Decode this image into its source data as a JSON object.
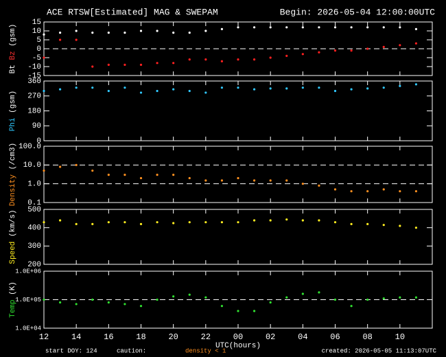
{
  "header": {
    "title": "ACE RTSW[Estimated] MAG & SWEPAM",
    "begin": "Begin: 2026-05-04 12:00:00UTC"
  },
  "footer": {
    "start": "start DOY: 124",
    "caution": "caution:",
    "density": "density < 1",
    "created": "created: 2026-05-05 11:13:07UTC"
  },
  "chart_data": [
    {
      "type": "scatter",
      "ylabel": [
        {
          "text": "Bt",
          "color": "#ffffff"
        },
        {
          "text": "Bz",
          "color": "#ff3030"
        },
        {
          "text": "(gsm)",
          "color": "#ffffff"
        }
      ],
      "x": [
        12,
        13,
        14,
        15,
        16,
        17,
        18,
        19,
        20,
        21,
        22,
        23,
        24,
        25,
        26,
        27,
        28,
        29,
        30,
        31,
        32,
        33,
        34,
        35
      ],
      "xlim": [
        12,
        36
      ],
      "xticks": [
        12,
        14,
        16,
        18,
        20,
        22,
        24,
        26,
        28,
        30,
        32,
        34
      ],
      "ylim": [
        -15,
        15
      ],
      "yticks": [
        -15,
        -10,
        -5,
        0,
        5,
        10,
        15
      ],
      "hlines": [
        0
      ],
      "series": [
        {
          "name": "Bt",
          "color": "#ffffff",
          "values": [
            8,
            9,
            10,
            9,
            9,
            9,
            10,
            10,
            9,
            9,
            10,
            11,
            12,
            12,
            12,
            12,
            12,
            12,
            12,
            12,
            12,
            12,
            12,
            11
          ]
        },
        {
          "name": "Bz",
          "color": "#ff2020",
          "values": [
            -5,
            5,
            5,
            -10,
            -9,
            -9,
            -9,
            -8,
            -8,
            -6,
            -6,
            -7,
            -6,
            -6,
            -5,
            -4,
            -3,
            -2,
            -1,
            -1,
            0,
            1,
            2,
            3
          ]
        }
      ]
    },
    {
      "type": "scatter",
      "ylabel": [
        {
          "text": "Phi",
          "color": "#30c8ff"
        },
        {
          "text": "(gsm)",
          "color": "#ffffff"
        }
      ],
      "x": [
        12,
        13,
        14,
        15,
        16,
        17,
        18,
        19,
        20,
        21,
        22,
        23,
        24,
        25,
        26,
        27,
        28,
        29,
        30,
        31,
        32,
        33,
        34,
        35
      ],
      "xlim": [
        12,
        36
      ],
      "xticks": [
        12,
        14,
        16,
        18,
        20,
        22,
        24,
        26,
        28,
        30,
        32,
        34
      ],
      "ylim": [
        0,
        360
      ],
      "yticks": [
        0,
        90,
        180,
        270,
        360
      ],
      "hlines": [],
      "series": [
        {
          "name": "Phi",
          "color": "#30c8ff",
          "values": [
            300,
            310,
            320,
            320,
            300,
            320,
            290,
            300,
            310,
            300,
            290,
            320,
            320,
            310,
            315,
            315,
            320,
            320,
            300,
            310,
            315,
            320,
            330,
            340
          ]
        }
      ]
    },
    {
      "type": "scatter",
      "log": true,
      "ylabel": [
        {
          "text": "Density",
          "color": "#ff9020"
        },
        {
          "text": "(/cm3)",
          "color": "#ffffff"
        }
      ],
      "x": [
        12,
        13,
        14,
        15,
        16,
        17,
        18,
        19,
        20,
        21,
        22,
        23,
        24,
        25,
        26,
        27,
        28,
        29,
        30,
        31,
        32,
        33,
        34,
        35
      ],
      "xlim": [
        12,
        36
      ],
      "xticks": [
        12,
        14,
        16,
        18,
        20,
        22,
        24,
        26,
        28,
        30,
        32,
        34
      ],
      "ylim": [
        0.1,
        100
      ],
      "yticks": [
        0.1,
        {
          "value": 1,
          "label": "1.0"
        },
        {
          "value": 10,
          "label": "10.0"
        },
        {
          "value": 100,
          "label": "100.0"
        }
      ],
      "hlines": [
        1,
        10
      ],
      "series": [
        {
          "name": "Density",
          "color": "#ff9020",
          "values": [
            5,
            8,
            10,
            5,
            3,
            3,
            2,
            3,
            3,
            2,
            1.5,
            1.5,
            2,
            1.5,
            1.5,
            1.5,
            1,
            0.8,
            0.5,
            0.4,
            0.4,
            0.5,
            0.4,
            0.4
          ]
        }
      ]
    },
    {
      "type": "scatter",
      "ylabel": [
        {
          "text": "Speed",
          "color": "#ffee20"
        },
        {
          "text": "(km/s)",
          "color": "#ffffff"
        }
      ],
      "x": [
        12,
        13,
        14,
        15,
        16,
        17,
        18,
        19,
        20,
        21,
        22,
        23,
        24,
        25,
        26,
        27,
        28,
        29,
        30,
        31,
        32,
        33,
        34,
        35
      ],
      "xlim": [
        12,
        36
      ],
      "xticks": [
        12,
        14,
        16,
        18,
        20,
        22,
        24,
        26,
        28,
        30,
        32,
        34
      ],
      "ylim": [
        200,
        500
      ],
      "yticks": [
        200,
        300,
        400,
        500
      ],
      "hlines": [],
      "series": [
        {
          "name": "Speed",
          "color": "#ffee20",
          "values": [
            430,
            440,
            420,
            420,
            430,
            430,
            420,
            430,
            425,
            430,
            430,
            430,
            430,
            440,
            440,
            445,
            440,
            440,
            430,
            420,
            420,
            415,
            410,
            400
          ]
        }
      ]
    },
    {
      "type": "scatter",
      "log": true,
      "ylabel": [
        {
          "text": "Temp",
          "color": "#30e030"
        },
        {
          "text": "(K)",
          "color": "#ffffff"
        }
      ],
      "x": [
        12,
        13,
        14,
        15,
        16,
        17,
        18,
        19,
        20,
        21,
        22,
        23,
        24,
        25,
        26,
        27,
        28,
        29,
        30,
        31,
        32,
        33,
        34,
        35
      ],
      "xlim": [
        12,
        36
      ],
      "xticks": [
        12,
        14,
        16,
        18,
        20,
        22,
        {
          "value": 24,
          "label": "00"
        },
        {
          "value": 26,
          "label": "02"
        },
        {
          "value": 28,
          "label": "04"
        },
        {
          "value": 30,
          "label": "06"
        },
        {
          "value": 32,
          "label": "08"
        },
        {
          "value": 34,
          "label": "10"
        }
      ],
      "xlabel": "UTC(hours)",
      "ylim": [
        10000,
        1000000
      ],
      "yticks": [
        {
          "value": 10000,
          "label": "1.0E+04"
        },
        {
          "value": 100000,
          "label": "1.0E+05"
        },
        {
          "value": 1000000,
          "label": "1.0E+06"
        }
      ],
      "hlines": [
        100000
      ],
      "series": [
        {
          "name": "Temp",
          "color": "#30e030",
          "values": [
            100000,
            80000,
            70000,
            100000,
            80000,
            70000,
            60000,
            100000,
            130000,
            150000,
            120000,
            60000,
            40000,
            40000,
            80000,
            120000,
            160000,
            180000,
            100000,
            60000,
            100000,
            110000,
            120000,
            120000
          ]
        }
      ]
    }
  ]
}
